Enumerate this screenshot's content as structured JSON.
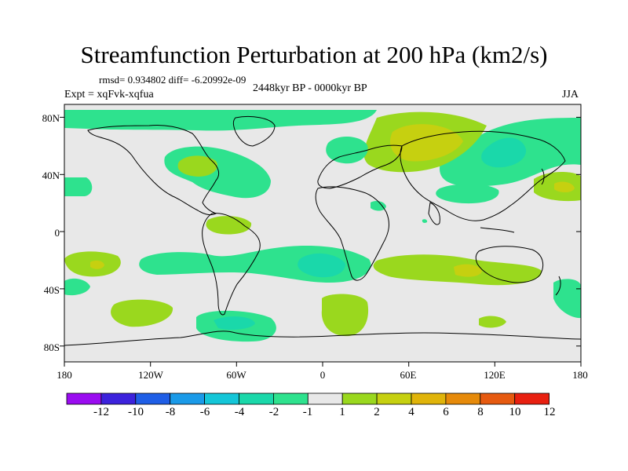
{
  "header": {
    "title": "Streamfunction Perturbation at 200 hPa (km2/s)",
    "stats": "rmsd= 0.934802 diff= -6.20992e-09",
    "period": "2448kyr BP - 0000kyr BP",
    "experiment": "Expt = xqFvk-xqfua",
    "season": "JJA"
  },
  "map": {
    "lat_labels": [
      "80N",
      "40N",
      "0",
      "40S",
      "80S"
    ],
    "lon_labels": [
      "180",
      "120W",
      "60W",
      "0",
      "60E",
      "120E",
      "180"
    ],
    "background_color": "#e8e8e8"
  },
  "colorbar": {
    "labels": [
      "-12",
      "-10",
      "-8",
      "-6",
      "-4",
      "-2",
      "-1",
      "1",
      "2",
      "4",
      "6",
      "8",
      "10",
      "12"
    ],
    "colors": [
      "#9a0cf0",
      "#3c22dc",
      "#1f5ee6",
      "#1a9ae8",
      "#14c6d8",
      "#1ad8aa",
      "#2ee28e",
      "#e8e8e8",
      "#9ad81e",
      "#c6d010",
      "#e0b40a",
      "#e68a0a",
      "#e65a10",
      "#e82010"
    ]
  }
}
